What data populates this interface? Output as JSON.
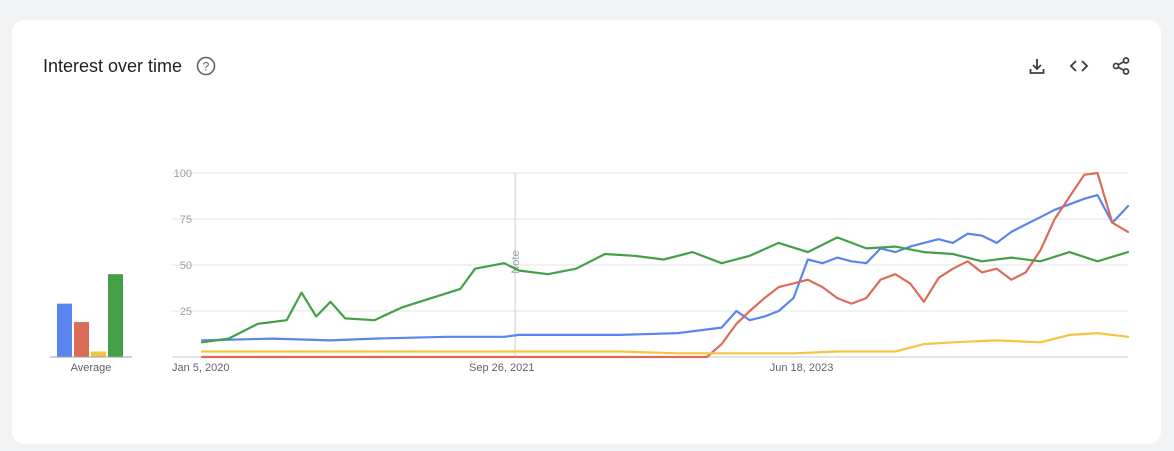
{
  "header": {
    "title": "Interest over time"
  },
  "icons": {
    "help": "help-circle-icon",
    "download": "download-icon",
    "embed": "embed-code-icon",
    "share": "share-icon"
  },
  "chart_data": {
    "type": "line",
    "title": "Interest over time",
    "ylim": [
      0,
      100
    ],
    "yticks": [
      25,
      50,
      75,
      100
    ],
    "x_tick_labels": [
      "Jan 5, 2020",
      "Sep 26, 2021",
      "Jun 18, 2023"
    ],
    "x_range": [
      "2020-01-05",
      "2025-05-04"
    ],
    "note": {
      "date": "2021-10-24",
      "label": "Note"
    },
    "grid": true,
    "average_label": "Average",
    "series": [
      {
        "color": "#5a84ee",
        "average": 29,
        "points": [
          [
            "2020-01-05",
            9
          ],
          [
            "2020-06-01",
            10
          ],
          [
            "2020-10-01",
            9
          ],
          [
            "2021-01-01",
            10
          ],
          [
            "2021-06-01",
            11
          ],
          [
            "2021-10-01",
            11
          ],
          [
            "2021-11-01",
            12
          ],
          [
            "2022-06-01",
            12
          ],
          [
            "2022-10-01",
            13
          ],
          [
            "2023-01-01",
            16
          ],
          [
            "2023-02-01",
            25
          ],
          [
            "2023-03-01",
            20
          ],
          [
            "2023-04-01",
            22
          ],
          [
            "2023-05-01",
            25
          ],
          [
            "2023-06-01",
            32
          ],
          [
            "2023-07-01",
            53
          ],
          [
            "2023-08-01",
            51
          ],
          [
            "2023-09-01",
            54
          ],
          [
            "2023-10-01",
            52
          ],
          [
            "2023-11-01",
            51
          ],
          [
            "2023-12-01",
            59
          ],
          [
            "2024-01-01",
            57
          ],
          [
            "2024-02-01",
            60
          ],
          [
            "2024-03-01",
            62
          ],
          [
            "2024-04-01",
            64
          ],
          [
            "2024-05-01",
            62
          ],
          [
            "2024-06-01",
            67
          ],
          [
            "2024-07-01",
            66
          ],
          [
            "2024-08-01",
            62
          ],
          [
            "2024-09-01",
            68
          ],
          [
            "2024-10-01",
            72
          ],
          [
            "2024-11-01",
            76
          ],
          [
            "2024-12-01",
            80
          ],
          [
            "2025-01-01",
            83
          ],
          [
            "2025-02-01",
            86
          ],
          [
            "2025-03-01",
            88
          ],
          [
            "2025-04-01",
            73
          ],
          [
            "2025-05-04",
            82
          ]
        ]
      },
      {
        "color": "#d96d5a",
        "average": 19,
        "points": [
          [
            "2020-01-05",
            0
          ],
          [
            "2022-12-01",
            0
          ],
          [
            "2023-01-01",
            7
          ],
          [
            "2023-02-01",
            18
          ],
          [
            "2023-03-01",
            25
          ],
          [
            "2023-04-01",
            32
          ],
          [
            "2023-05-01",
            38
          ],
          [
            "2023-06-01",
            40
          ],
          [
            "2023-07-01",
            42
          ],
          [
            "2023-08-01",
            38
          ],
          [
            "2023-09-01",
            32
          ],
          [
            "2023-10-01",
            29
          ],
          [
            "2023-11-01",
            32
          ],
          [
            "2023-12-01",
            42
          ],
          [
            "2024-01-01",
            45
          ],
          [
            "2024-02-01",
            40
          ],
          [
            "2024-03-01",
            30
          ],
          [
            "2024-04-01",
            43
          ],
          [
            "2024-05-01",
            48
          ],
          [
            "2024-06-01",
            52
          ],
          [
            "2024-07-01",
            46
          ],
          [
            "2024-08-01",
            48
          ],
          [
            "2024-09-01",
            42
          ],
          [
            "2024-10-01",
            46
          ],
          [
            "2024-11-01",
            58
          ],
          [
            "2024-12-01",
            75
          ],
          [
            "2025-01-01",
            87
          ],
          [
            "2025-02-01",
            99
          ],
          [
            "2025-03-01",
            100
          ],
          [
            "2025-04-01",
            73
          ],
          [
            "2025-05-04",
            68
          ]
        ]
      },
      {
        "color": "#f5c542",
        "average": 3,
        "points": [
          [
            "2020-01-05",
            3
          ],
          [
            "2021-06-01",
            3
          ],
          [
            "2022-06-01",
            3
          ],
          [
            "2022-10-01",
            2
          ],
          [
            "2023-06-01",
            2
          ],
          [
            "2023-09-01",
            3
          ],
          [
            "2024-01-01",
            3
          ],
          [
            "2024-03-01",
            7
          ],
          [
            "2024-05-01",
            8
          ],
          [
            "2024-08-01",
            9
          ],
          [
            "2024-11-01",
            8
          ],
          [
            "2025-01-01",
            12
          ],
          [
            "2025-03-01",
            13
          ],
          [
            "2025-05-04",
            11
          ]
        ]
      },
      {
        "color": "#43a047",
        "average": 45,
        "points": [
          [
            "2020-01-05",
            8
          ],
          [
            "2020-03-01",
            10
          ],
          [
            "2020-05-01",
            18
          ],
          [
            "2020-07-01",
            20
          ],
          [
            "2020-08-01",
            35
          ],
          [
            "2020-09-01",
            22
          ],
          [
            "2020-10-01",
            30
          ],
          [
            "2020-11-01",
            21
          ],
          [
            "2021-01-01",
            20
          ],
          [
            "2021-03-01",
            27
          ],
          [
            "2021-05-01",
            32
          ],
          [
            "2021-07-01",
            37
          ],
          [
            "2021-08-01",
            48
          ],
          [
            "2021-10-01",
            51
          ],
          [
            "2021-11-01",
            47
          ],
          [
            "2022-01-01",
            45
          ],
          [
            "2022-03-01",
            48
          ],
          [
            "2022-05-01",
            56
          ],
          [
            "2022-07-01",
            55
          ],
          [
            "2022-09-01",
            53
          ],
          [
            "2022-11-01",
            57
          ],
          [
            "2023-01-01",
            51
          ],
          [
            "2023-03-01",
            55
          ],
          [
            "2023-05-01",
            62
          ],
          [
            "2023-07-01",
            57
          ],
          [
            "2023-09-01",
            65
          ],
          [
            "2023-11-01",
            59
          ],
          [
            "2024-01-01",
            60
          ],
          [
            "2024-03-01",
            57
          ],
          [
            "2024-05-01",
            56
          ],
          [
            "2024-07-01",
            52
          ],
          [
            "2024-09-01",
            54
          ],
          [
            "2024-11-01",
            52
          ],
          [
            "2025-01-01",
            57
          ],
          [
            "2025-03-01",
            52
          ],
          [
            "2025-05-04",
            57
          ]
        ]
      }
    ]
  }
}
